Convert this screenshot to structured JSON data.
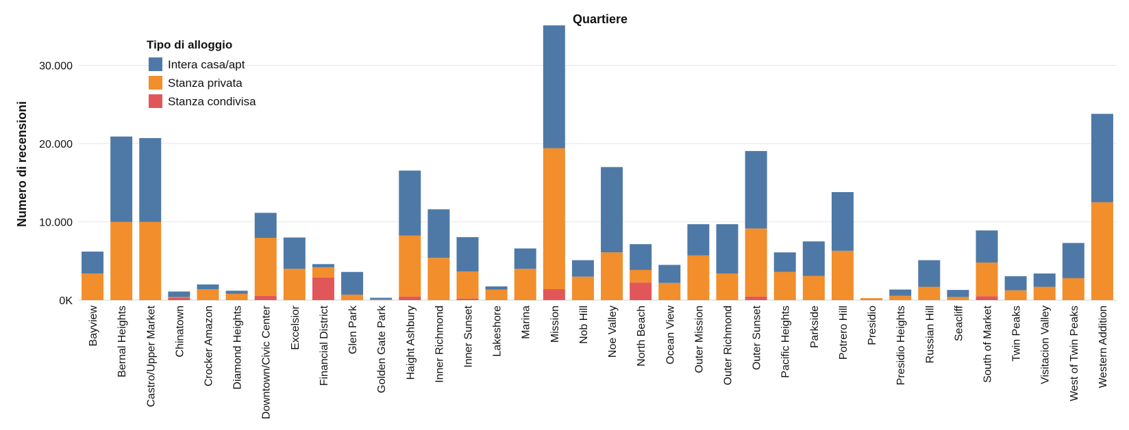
{
  "chart_data": {
    "type": "bar",
    "stacked": true,
    "title": "Quartiere",
    "xlabel": "",
    "ylabel": "Numero di recensioni",
    "ylim": [
      0,
      34500
    ],
    "yticks": [
      {
        "value": 0,
        "label": "0K"
      },
      {
        "value": 10000,
        "label": "10.000"
      },
      {
        "value": 20000,
        "label": "20.000"
      },
      {
        "value": 30000,
        "label": "30.000"
      }
    ],
    "grid": true,
    "legend": {
      "title": "Tipo di alloggio",
      "placement": "top-left"
    },
    "categories": [
      "Bayview",
      "Bernal Heights",
      "Castro/Upper Market",
      "Chinatown",
      "Crocker Amazon",
      "Diamond Heights",
      "Downtown/Civic Center",
      "Excelsior",
      "Financial District",
      "Glen Park",
      "Golden Gate Park",
      "Haight Ashbury",
      "Inner Richmond",
      "Inner Sunset",
      "Lakeshore",
      "Marina",
      "Mission",
      "Nob Hill",
      "Noe Valley",
      "North Beach",
      "Ocean View",
      "Outer Mission",
      "Outer Richmond",
      "Outer Sunset",
      "Pacific Heights",
      "Parkside",
      "Potrero Hill",
      "Presidio",
      "Presidio Heights",
      "Russian Hill",
      "Seacliff",
      "South of Market",
      "Twin Peaks",
      "Visitacion Valley",
      "West of Twin Peaks",
      "Western Addition"
    ],
    "series": [
      {
        "name": "Stanza condivisa",
        "color": "#e15759",
        "values": [
          0,
          0,
          0,
          300,
          0,
          0,
          550,
          0,
          2900,
          0,
          50,
          450,
          0,
          200,
          0,
          0,
          1400,
          0,
          0,
          2250,
          0,
          0,
          0,
          450,
          0,
          0,
          0,
          50,
          0,
          0,
          0,
          500,
          0,
          0,
          0,
          0
        ]
      },
      {
        "name": "Stanza privata",
        "color": "#f28e2b",
        "values": [
          3400,
          10000,
          10000,
          100,
          1400,
          800,
          7400,
          4000,
          1300,
          700,
          50,
          7800,
          5400,
          3450,
          1350,
          4000,
          18000,
          3000,
          6100,
          1600,
          2200,
          5700,
          3400,
          8700,
          3600,
          3100,
          6300,
          200,
          550,
          1700,
          400,
          4300,
          1250,
          1700,
          2800,
          12500
        ]
      },
      {
        "name": "Intera casa/apt",
        "color": "#4e79a7",
        "values": [
          2800,
          10900,
          10700,
          700,
          600,
          400,
          3200,
          4000,
          400,
          2900,
          200,
          8300,
          6200,
          4400,
          400,
          2600,
          15700,
          2100,
          10900,
          3300,
          2300,
          4000,
          6300,
          9900,
          2500,
          4400,
          7500,
          0,
          800,
          3400,
          900,
          4100,
          1800,
          1700,
          4500,
          11300
        ]
      }
    ]
  }
}
